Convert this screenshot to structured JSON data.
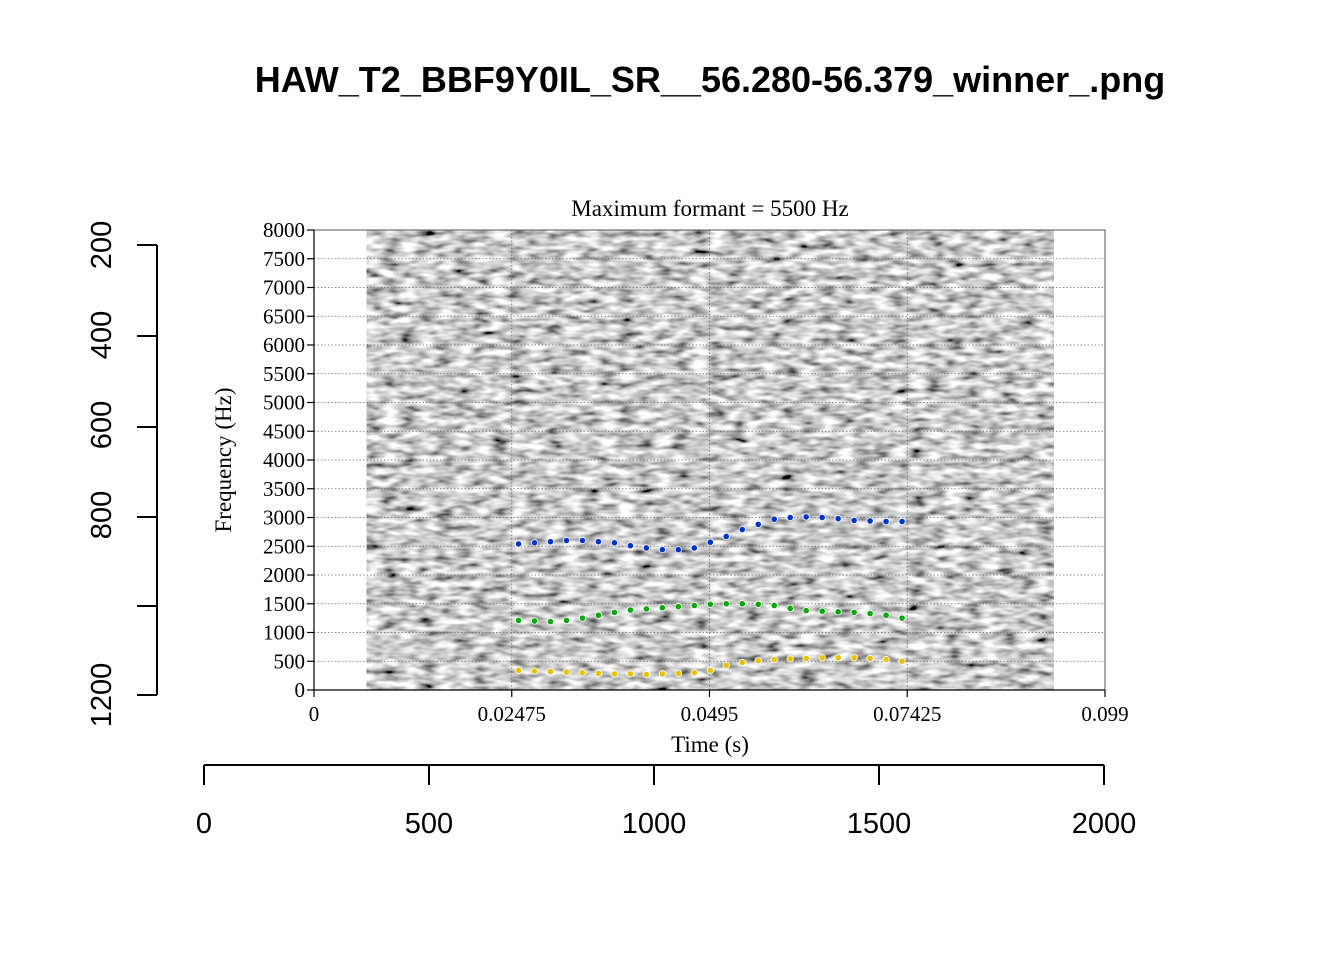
{
  "figure": {
    "title": "HAW_T2_BBF9Y0IL_SR__56.280-56.379_winner_.png"
  },
  "outer_axes": {
    "x_ticks": [
      "0",
      "500",
      "1000",
      "1500",
      "2000"
    ],
    "y_ticks": [
      "200",
      "400",
      "600",
      "800",
      "1200"
    ]
  },
  "chart_data": {
    "type": "scatter",
    "title": "Maximum formant = 5500 Hz",
    "xlabel": "Time (s)",
    "ylabel": "Frequency (Hz)",
    "xlim": [
      0,
      0.099
    ],
    "ylim": [
      0,
      8000
    ],
    "x_tick_labels": [
      "0",
      "0.02475",
      "0.0495",
      "0.07425",
      "0.099"
    ],
    "y_tick_labels": [
      "0",
      "500",
      "1000",
      "1500",
      "2000",
      "2500",
      "3000",
      "3500",
      "4000",
      "4500",
      "5000",
      "5500",
      "6000",
      "6500",
      "7000",
      "7500",
      "8000"
    ],
    "grid": true,
    "spectrogram_time_range": [
      0.0066,
      0.0926
    ],
    "series": [
      {
        "color": "#0033cc",
        "x": [
          0.0256,
          0.0276,
          0.0296,
          0.0316,
          0.0336,
          0.0356,
          0.0376,
          0.0396,
          0.0416,
          0.0436,
          0.0456,
          0.0476,
          0.0496,
          0.0516,
          0.0536,
          0.0556,
          0.0576,
          0.0596,
          0.0616,
          0.0636,
          0.0656,
          0.0676,
          0.0696,
          0.0716,
          0.0736
        ],
        "y": [
          2540,
          2560,
          2580,
          2600,
          2600,
          2580,
          2560,
          2510,
          2470,
          2440,
          2440,
          2470,
          2570,
          2670,
          2790,
          2880,
          2970,
          3000,
          3010,
          3000,
          2980,
          2950,
          2940,
          2930,
          2930
        ]
      },
      {
        "color": "#00aa00",
        "x": [
          0.0256,
          0.0276,
          0.0296,
          0.0316,
          0.0336,
          0.0356,
          0.0376,
          0.0396,
          0.0416,
          0.0436,
          0.0456,
          0.0476,
          0.0496,
          0.0516,
          0.0536,
          0.0556,
          0.0576,
          0.0596,
          0.0616,
          0.0636,
          0.0656,
          0.0676,
          0.0696,
          0.0716,
          0.0736
        ],
        "y": [
          1210,
          1200,
          1190,
          1210,
          1250,
          1300,
          1350,
          1390,
          1410,
          1430,
          1450,
          1470,
          1490,
          1500,
          1500,
          1490,
          1470,
          1420,
          1380,
          1370,
          1360,
          1350,
          1330,
          1300,
          1250
        ]
      },
      {
        "color": "#e6c200",
        "x": [
          0.0256,
          0.0276,
          0.0296,
          0.0316,
          0.0336,
          0.0356,
          0.0376,
          0.0396,
          0.0416,
          0.0436,
          0.0456,
          0.0476,
          0.0496,
          0.0516,
          0.0536,
          0.0556,
          0.0576,
          0.0596,
          0.0616,
          0.0636,
          0.0656,
          0.0676,
          0.0696,
          0.0716,
          0.0736
        ],
        "y": [
          340,
          330,
          320,
          310,
          300,
          290,
          280,
          280,
          270,
          280,
          290,
          300,
          340,
          430,
          480,
          510,
          530,
          540,
          550,
          560,
          560,
          560,
          550,
          530,
          500
        ]
      }
    ]
  }
}
